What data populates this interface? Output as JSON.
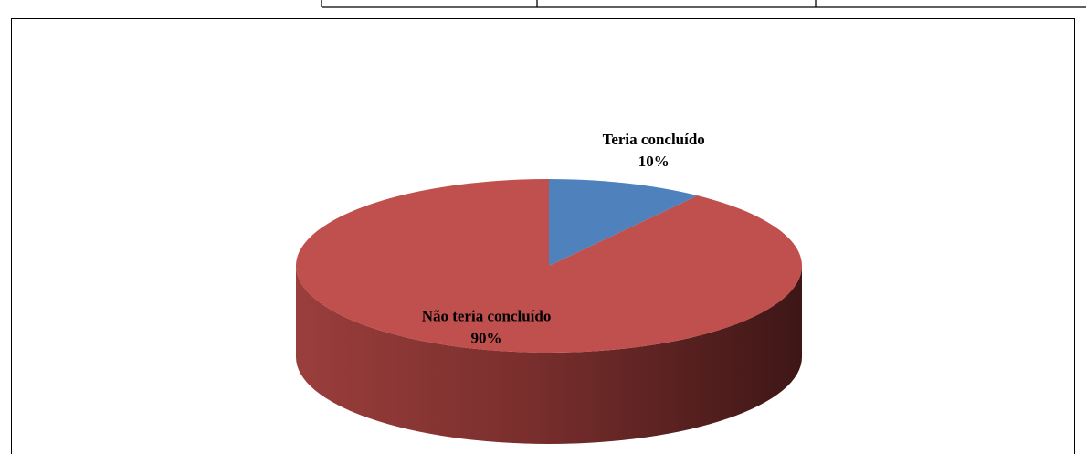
{
  "chart_data": {
    "type": "pie",
    "categories": [
      "Teria concluído",
      "Não teria concluído"
    ],
    "values": [
      10,
      90
    ],
    "value_labels": [
      "10%",
      "90%"
    ],
    "colors": [
      "#4f81bd",
      "#c0504d"
    ],
    "start_angle": 0,
    "three_d": true
  }
}
